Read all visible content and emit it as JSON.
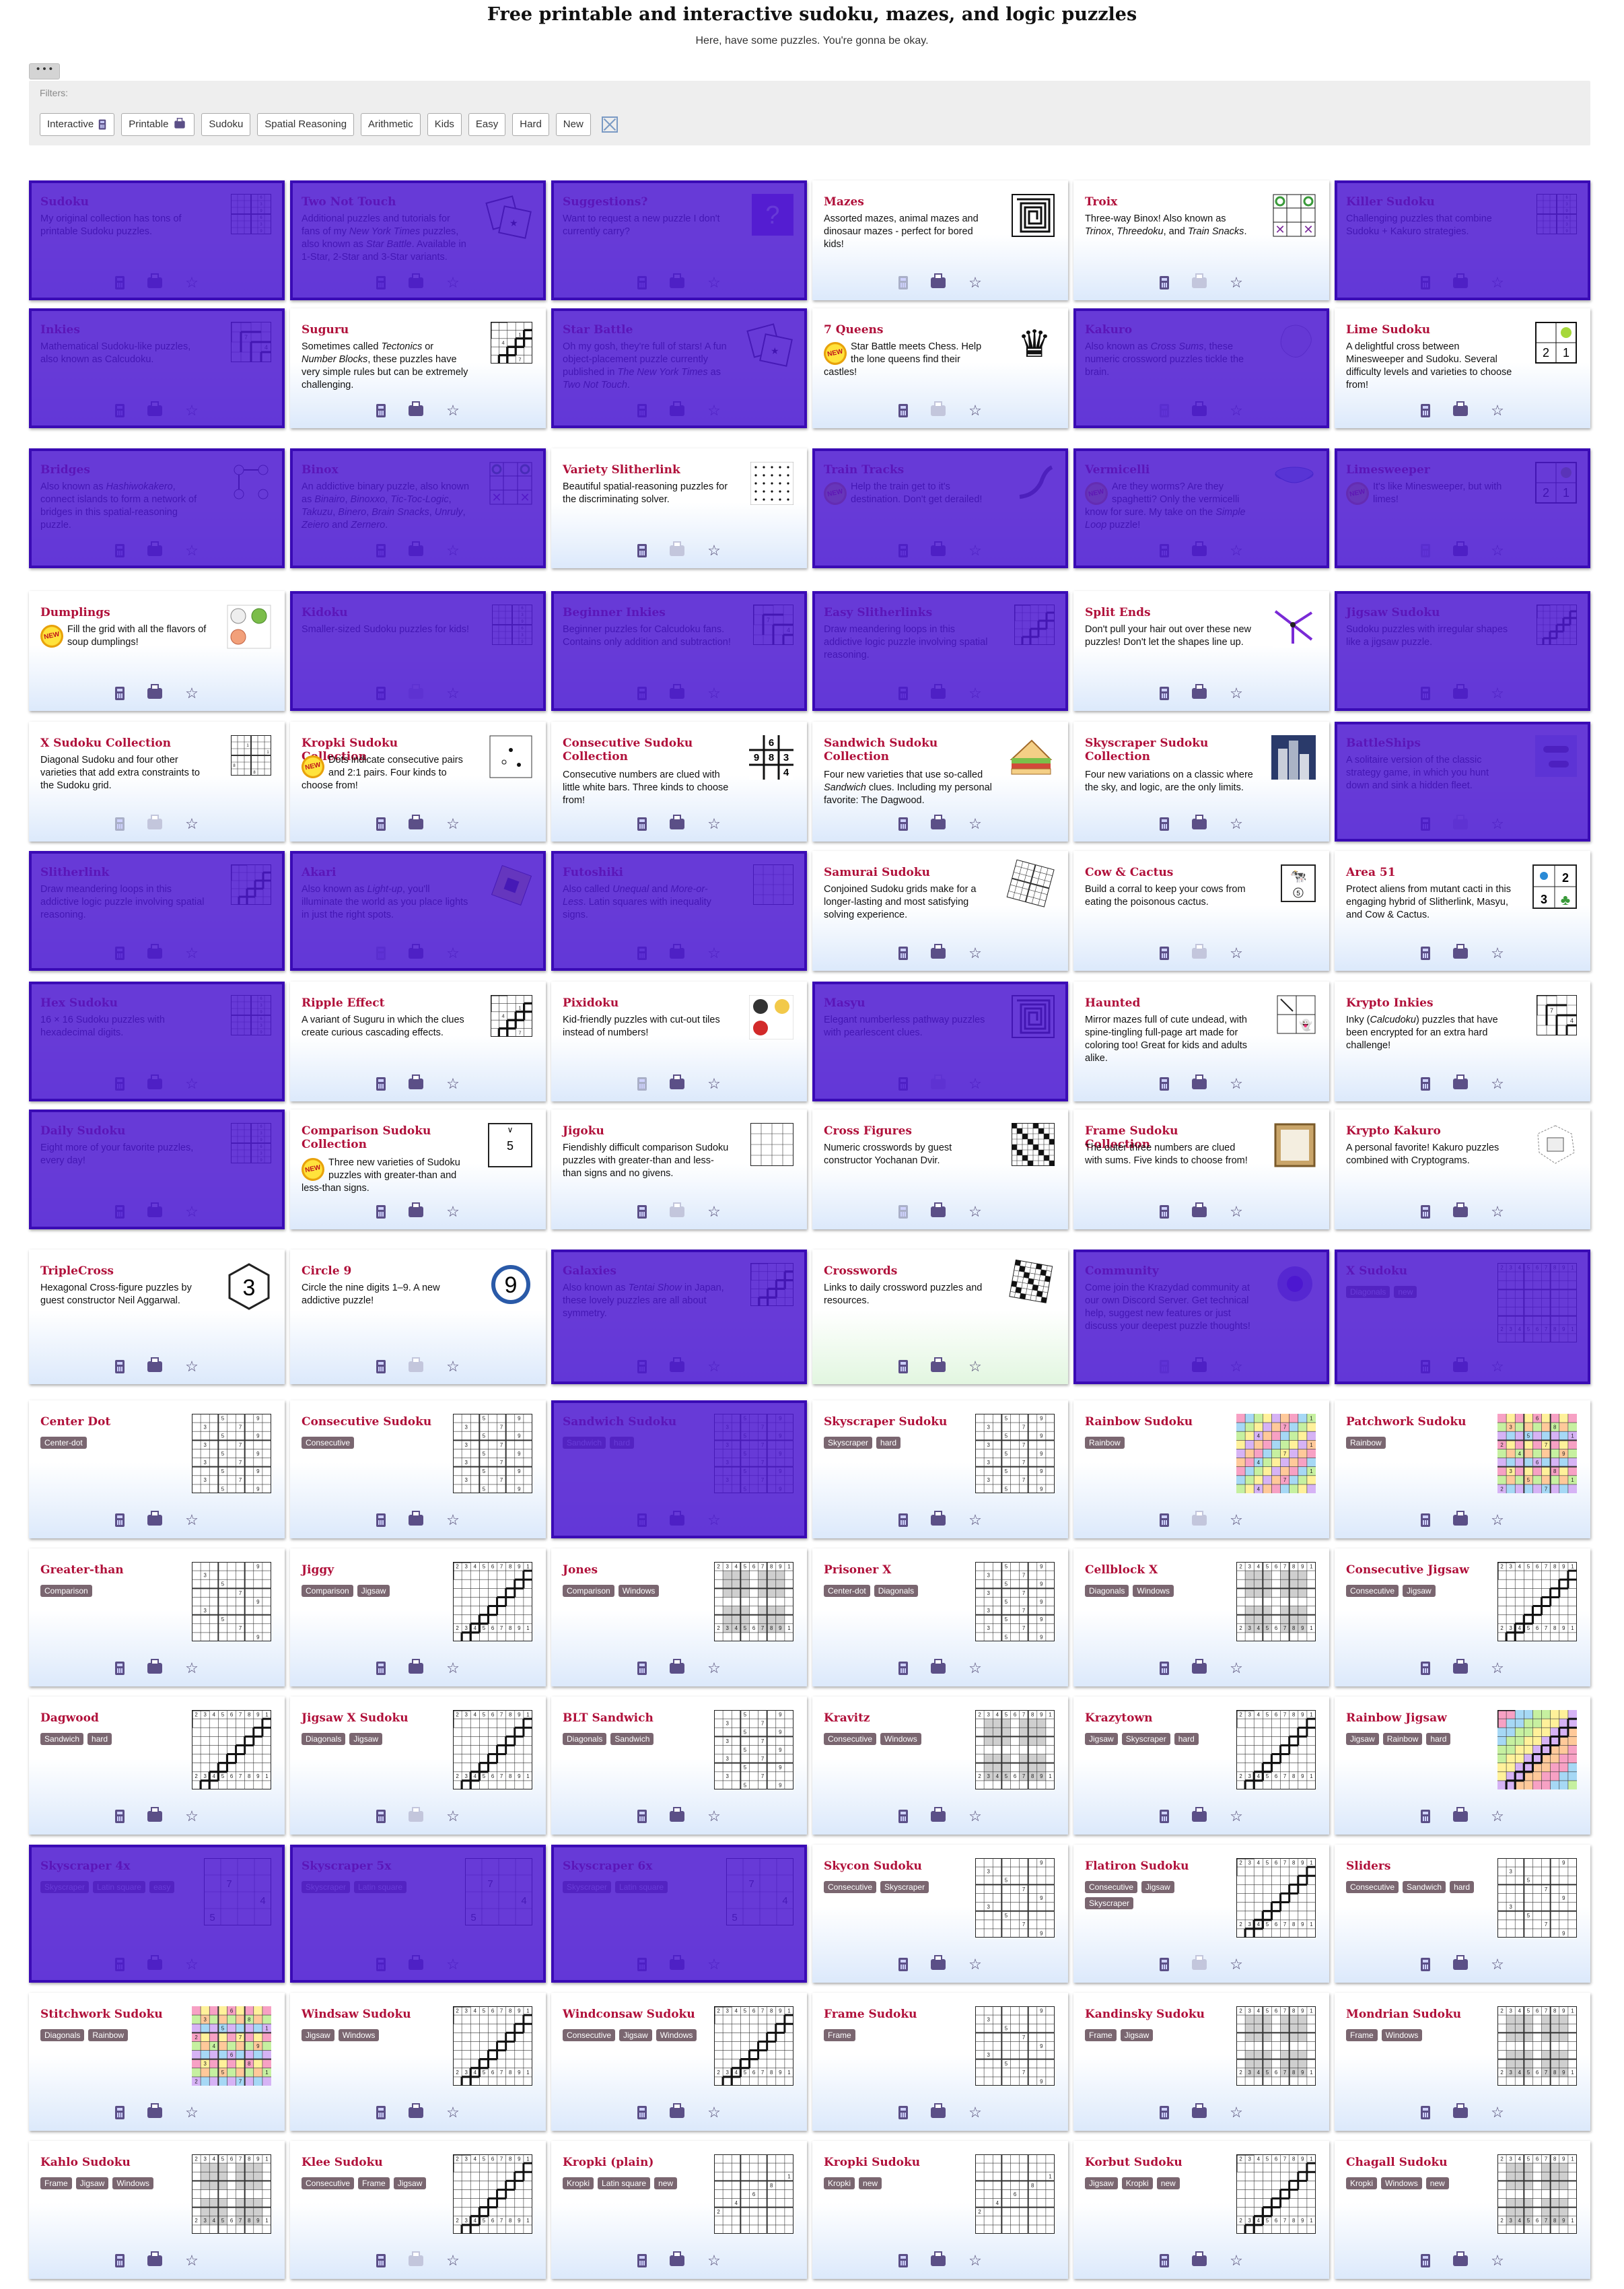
{
  "page": {
    "title": "Free printable and interactive sudoku, mazes, and logic puzzles",
    "subtitle": "Here, have some puzzles. You're gonna be okay.",
    "more_button": "• • •"
  },
  "filters": {
    "label": "Filters:",
    "items": [
      "Interactive",
      "Printable",
      "Sudoku",
      "Spatial Reasoning",
      "Arithmetic",
      "Kids",
      "Easy",
      "Hard",
      "New"
    ]
  },
  "colors": {
    "accent": "#b0103a",
    "overlay": "#4c18d0",
    "tag": "#7a6670",
    "tile_bottom": "#dce9fb"
  },
  "tiles": [
    {
      "title": "Sudoku",
      "desc": "My original collection has tons of printable Sudoku puzzles.",
      "thumb": "grid",
      "hl": true
    },
    {
      "title": "Two Not Touch",
      "desc": "Additional puzzles and tutorials for fans of my <i>New York Times</i> puzzles, also known as <i>Star Battle</i>. Available in 1-Star, 2-Star and 3-Star variants.",
      "thumb": "cards",
      "hl": true
    },
    {
      "title": "Suggestions?",
      "desc": "Want to request a new puzzle I don't currently carry?",
      "thumb": "question",
      "hl": true
    },
    {
      "title": "Mazes",
      "desc": "Assorted mazes, animal mazes and dinosaur mazes - perfect for bored kids!",
      "thumb": "maze",
      "hl": false
    },
    {
      "title": "Troix",
      "desc": "Three-way Binox! Also known as <i>Trinox</i>, <i>Threedoku</i>, and <i>Train Snacks</i>.",
      "thumb": "xo",
      "hl": false
    },
    {
      "title": "Killer Sudoku",
      "desc": "Challenging puzzles that combine Sudoku + Kakuro strategies.",
      "thumb": "grid",
      "hl": true
    },
    {
      "title": "Inkies",
      "desc": "Mathematical Sudoku-like puzzles, also known as Calcudoku.",
      "thumb": "cage",
      "hl": true
    },
    {
      "title": "Suguru",
      "desc": "Sometimes called <i>Tectonics</i> or <i>Number Blocks</i>, these puzzles have very simple rules but can be extremely challenging.",
      "thumb": "suguru",
      "hl": false
    },
    {
      "title": "Star Battle",
      "desc": "Oh my gosh, they're full of stars! A fun object-placement puzzle currently published in <i>The New York Times</i> as <i>Two Not Touch</i>.",
      "thumb": "cards",
      "hl": true
    },
    {
      "title": "7 Queens",
      "desc": "Star Battle meets Chess. Help the lone queens find their castles!",
      "thumb": "queen",
      "hl": false,
      "new": true
    },
    {
      "title": "Kakuro",
      "desc": "Also known as <i>Cross Sums</i>, these numeric crossword puzzles tickle the brain.",
      "thumb": "blob",
      "hl": true
    },
    {
      "title": "Lime Sudoku",
      "desc": "A delightful cross between Minesweeper and Sudoku. Several difficulty levels and varieties to choose from!",
      "thumb": "lime",
      "hl": false
    },
    {
      "title": "Bridges",
      "desc": "Also known as <i>Hashiwokakero</i>, connect islands to form a network of bridges in this spatial-reasoning puzzle.",
      "thumb": "bridges",
      "hl": true
    },
    {
      "title": "Binox",
      "desc": "An addictive binary puzzle, also known as <i>Binairo</i>, <i>Binoxxo</i>, <i>Tic-Toc-Logic</i>, <i>Takuzu</i>, <i>Binero</i>, <i>Brain Snacks</i>, <i>Unruly</i>, <i>Zeiero</i> and <i>Zernero</i>.",
      "thumb": "xo2",
      "hl": true
    },
    {
      "title": "Variety Slitherlink",
      "desc": "Beautiful spatial-reasoning puzzles for the discriminating solver.",
      "thumb": "dots",
      "hl": false
    },
    {
      "title": "Train Tracks",
      "desc": "Help the train get to it's destination. Don't get derailed!",
      "thumb": "tracks",
      "hl": true,
      "new": true
    },
    {
      "title": "Vermicelli",
      "desc": "Are they worms? Are they spaghetti? Only the vermicelli know for sure. My take on the <i>Simple Loop</i> puzzle!",
      "thumb": "bowl",
      "hl": true,
      "new": true
    },
    {
      "title": "Limesweeper",
      "desc": "It's like Minesweeper, but with limes!",
      "thumb": "lime2",
      "hl": true,
      "new": true
    },
    {
      "title": "Dumplings",
      "desc": "Fill the grid with all the flavors of soup dumplings!",
      "thumb": "dumpling",
      "hl": false,
      "new": true
    },
    {
      "title": "Kidoku",
      "desc": "Smaller-sized Sudoku puzzles for kids!",
      "thumb": "grid",
      "hl": true
    },
    {
      "title": "Beginner Inkies",
      "desc": "Beginner puzzles for Calcudoku fans. Contains only addition and subtraction!",
      "thumb": "cage",
      "hl": true
    },
    {
      "title": "Easy Slitherlinks",
      "desc": "Draw meandering loops in this addictive logic puzzle involving spatial reasoning.",
      "thumb": "loop",
      "hl": true
    },
    {
      "title": "Split Ends",
      "desc": "Don't pull your hair out over these new puzzles! Don't let the shapes line up.",
      "thumb": "split",
      "hl": false
    },
    {
      "title": "Jigsaw Sudoku",
      "desc": "Sudoku puzzles with irregular shapes like a jigsaw puzzle.",
      "thumb": "jigsaw",
      "hl": true
    },
    {
      "title": "X Sudoku Collection",
      "desc": "Diagonal Sudoku and four other varieties that add extra constraints to the Sudoku grid.",
      "thumb": "xgrid",
      "hl": false
    },
    {
      "title": "Kropki Sudoku Collection",
      "desc": "Dots indicate consecutive pairs and 2:1 pairs. Four kinds to choose from!",
      "thumb": "kropki",
      "hl": false,
      "new": true
    },
    {
      "title": "Consecutive Sudoku Collection",
      "desc": "Consecutive numbers are clued with little white bars. Three kinds to choose from!",
      "thumb": "consec",
      "hl": false
    },
    {
      "title": "Sandwich Sudoku Collection",
      "desc": "Four new varieties that use so-called <i>Sandwich</i> clues. Including my personal favorite: The Dagwood.",
      "thumb": "sandwich",
      "hl": false
    },
    {
      "title": "Skyscraper Sudoku Collection",
      "desc": "Four new variations on a classic where the sky, and logic, are the only limits.",
      "thumb": "sky",
      "hl": false
    },
    {
      "title": "BattleShips",
      "desc": "A solitaire version of the classic strategy game, in which you hunt down and sink a hidden fleet.",
      "thumb": "ships",
      "hl": true
    },
    {
      "title": "Slitherlink",
      "desc": "Draw meandering loops in this addictive logic puzzle involving spatial reasoning.",
      "thumb": "loop",
      "hl": true
    },
    {
      "title": "Akari",
      "desc": "Also known as <i>Light-up</i>, you'll illuminate the world as you place lights in just the right spots.",
      "thumb": "akari",
      "hl": true
    },
    {
      "title": "Futoshiki",
      "desc": "Also called <i>Unequal</i> and <i>More-or-Less</i>. Latin squares with inequality signs.",
      "thumb": "futo",
      "hl": true
    },
    {
      "title": "Samurai Sudoku",
      "desc": "Conjoined Sudoku grids make for a longer-lasting and most satisfying solving experience.",
      "thumb": "samurai",
      "hl": false
    },
    {
      "title": "Cow &amp; Cactus",
      "desc": "Build a corral to keep your cows from eating the poisonous cactus.",
      "thumb": "cow",
      "hl": false
    },
    {
      "title": "Area 51",
      "desc": "Protect aliens from mutant cacti in this engaging hybrid of Slitherlink, Masyu, and Cow &amp; Cactus.",
      "thumb": "area51",
      "hl": false
    },
    {
      "title": "Hex Sudoku",
      "desc": "16 × 16 Sudoku puzzles with hexadecimal digits.",
      "thumb": "grid",
      "hl": true
    },
    {
      "title": "Ripple Effect",
      "desc": "A variant of Suguru in which the clues create curious cascading effects.",
      "thumb": "suguru",
      "hl": false
    },
    {
      "title": "Pixidoku",
      "desc": "Kid-friendly puzzles with cut-out tiles instead of numbers!",
      "thumb": "pixi",
      "hl": false
    },
    {
      "title": "Masyu",
      "desc": "Elegant numberless pathway puzzles with pearlescent clues.",
      "thumb": "maze",
      "hl": true
    },
    {
      "title": "Haunted",
      "desc": "Mirror mazes full of cute undead, with spine-tingling full-page art made for coloring too! Great for kids and adults alike.",
      "thumb": "haunted",
      "hl": false
    },
    {
      "title": "Krypto Inkies",
      "desc": "Inky (<i>Calcudoku</i>) puzzles that have been encrypted for an extra hard challenge!",
      "thumb": "kinkies",
      "hl": false
    },
    {
      "title": "Daily Sudoku",
      "desc": "Eight more of your favorite puzzles, every day!",
      "thumb": "grid",
      "hl": true
    },
    {
      "title": "Comparison Sudoku Collection",
      "desc": "Three new varieties of Sudoku puzzles with greater-than and less-than signs.",
      "thumb": "comp",
      "hl": false,
      "new": true
    },
    {
      "title": "Jigoku",
      "desc": "Fiendishly difficult comparison Sudoku puzzles with greater-than and less-than signs and no givens.",
      "thumb": "jigoku",
      "hl": false
    },
    {
      "title": "Cross Figures",
      "desc": "Numeric crosswords by guest constructor Yochanan Dvir.",
      "thumb": "crossfig",
      "hl": false
    },
    {
      "title": "Frame Sudoku Collection",
      "desc": "The outer three numbers are clued with sums. Five kinds to choose from!",
      "thumb": "frame",
      "hl": false
    },
    {
      "title": "Krypto Kakuro",
      "desc": "A personal favorite! Kakuro puzzles combined with Cryptograms.",
      "thumb": "kkakuro",
      "hl": false
    },
    {
      "title": "TripleCross",
      "desc": "Hexagonal Cross-figure puzzles by guest constructor Neil Aggarwal.",
      "thumb": "hex3",
      "hl": false
    },
    {
      "title": "Circle 9",
      "desc": "Circle the nine digits 1–9. A new addictive puzzle!",
      "thumb": "circle9",
      "hl": false
    },
    {
      "title": "Galaxies",
      "desc": "Also known as <i>Tentai Show</i> in Japan, these lovely puzzles are all about symmetry.",
      "thumb": "galaxy",
      "hl": true
    },
    {
      "title": "Crosswords",
      "desc": "Links to daily crossword puzzles and resources.",
      "thumb": "crossword",
      "hl": false,
      "green": true
    },
    {
      "title": "Community",
      "desc": "Come join the Krazydad community at our own Discord Server. Get technical help, suggest new features or just discuss your deepest puzzle thoughts!",
      "thumb": "discord",
      "hl": true
    },
    {
      "title": "X Sudoku",
      "tags": [
        "Diagonals",
        "new"
      ],
      "thumb": "big",
      "hl": true
    }
  ],
  "variants": [
    {
      "title": "Center Dot",
      "tags": [
        "Center-dot"
      ],
      "thumb": "sud",
      "hl": false
    },
    {
      "title": "Consecutive Sudoku",
      "tags": [
        "Consecutive"
      ],
      "thumb": "sud",
      "hl": false
    },
    {
      "title": "Sandwich Sudoku",
      "tags": [
        "Sandwich",
        "hard"
      ],
      "thumb": "sud",
      "hl": true
    },
    {
      "title": "Skyscraper Sudoku",
      "tags": [
        "Skyscraper",
        "hard"
      ],
      "thumb": "sud",
      "hl": false
    },
    {
      "title": "Rainbow Sudoku",
      "tags": [
        "Rainbow"
      ],
      "thumb": "rainbow",
      "hl": false
    },
    {
      "title": "Patchwork Sudoku",
      "tags": [
        "Rainbow"
      ],
      "thumb": "patch",
      "hl": false
    },
    {
      "title": "Greater-than",
      "tags": [
        "Comparison"
      ],
      "thumb": "sudlight",
      "hl": false
    },
    {
      "title": "Jiggy",
      "tags": [
        "Comparison",
        "Jigsaw"
      ],
      "thumb": "jig",
      "hl": false
    },
    {
      "title": "Jones",
      "tags": [
        "Comparison",
        "Windows"
      ],
      "thumb": "win",
      "hl": false
    },
    {
      "title": "Prisoner X",
      "tags": [
        "Center-dot",
        "Diagonals"
      ],
      "thumb": "sud",
      "hl": false
    },
    {
      "title": "Cellblock X",
      "tags": [
        "Diagonals",
        "Windows"
      ],
      "thumb": "win",
      "hl": false
    },
    {
      "title": "Consecutive Jigsaw",
      "tags": [
        "Consecutive",
        "Jigsaw"
      ],
      "thumb": "jig",
      "hl": false
    },
    {
      "title": "Dagwood",
      "tags": [
        "Sandwich",
        "hard"
      ],
      "thumb": "jig",
      "hl": false
    },
    {
      "title": "Jigsaw X Sudoku",
      "tags": [
        "Diagonals",
        "Jigsaw"
      ],
      "thumb": "jig",
      "hl": false
    },
    {
      "title": "BLT Sandwich",
      "tags": [
        "Diagonals",
        "Sandwich"
      ],
      "thumb": "sud",
      "hl": false
    },
    {
      "title": "Kravitz",
      "tags": [
        "Consecutive",
        "Windows"
      ],
      "thumb": "win",
      "hl": false
    },
    {
      "title": "Krazytown",
      "tags": [
        "Jigsaw",
        "Skyscraper",
        "hard"
      ],
      "thumb": "jig",
      "hl": false
    },
    {
      "title": "Rainbow Jigsaw",
      "tags": [
        "Jigsaw",
        "Rainbow",
        "hard"
      ],
      "thumb": "rainbowj",
      "hl": false
    },
    {
      "title": "Skyscraper 4x",
      "tags": [
        "Skyscraper",
        "Latin square",
        "easy"
      ],
      "thumb": "small",
      "hl": true
    },
    {
      "title": "Skyscraper 5x",
      "tags": [
        "Skyscraper",
        "Latin square"
      ],
      "thumb": "small",
      "hl": true
    },
    {
      "title": "Skyscraper 6x",
      "tags": [
        "Skyscraper",
        "Latin square"
      ],
      "thumb": "small",
      "hl": true
    },
    {
      "title": "Skycon Sudoku",
      "tags": [
        "Consecutive",
        "Skyscraper"
      ],
      "thumb": "sudlight",
      "hl": false
    },
    {
      "title": "Flatiron Sudoku",
      "tags": [
        "Consecutive",
        "Jigsaw",
        "Skyscraper"
      ],
      "thumb": "jig",
      "hl": false
    },
    {
      "title": "Sliders",
      "tags": [
        "Consecutive",
        "Sandwich",
        "hard"
      ],
      "thumb": "sudlight",
      "hl": false
    },
    {
      "title": "Stitchwork Sudoku",
      "tags": [
        "Diagonals",
        "Rainbow"
      ],
      "thumb": "patch",
      "hl": false
    },
    {
      "title": "Windsaw Sudoku",
      "tags": [
        "Jigsaw",
        "Windows"
      ],
      "thumb": "jig",
      "hl": false
    },
    {
      "title": "Windconsaw Sudoku",
      "tags": [
        "Consecutive",
        "Jigsaw",
        "Windows"
      ],
      "thumb": "jig",
      "hl": false
    },
    {
      "title": "Frame Sudoku",
      "tags": [
        "Frame"
      ],
      "thumb": "sudlight",
      "hl": false
    },
    {
      "title": "Kandinsky Sudoku",
      "tags": [
        "Frame",
        "Jigsaw"
      ],
      "thumb": "win",
      "hl": false
    },
    {
      "title": "Mondrian Sudoku",
      "tags": [
        "Frame",
        "Windows"
      ],
      "thumb": "win",
      "hl": false
    },
    {
      "title": "Kahlo Sudoku",
      "tags": [
        "Frame",
        "Jigsaw",
        "Windows"
      ],
      "thumb": "win",
      "hl": false
    },
    {
      "title": "Klee Sudoku",
      "tags": [
        "Consecutive",
        "Frame",
        "Jigsaw"
      ],
      "thumb": "jig",
      "hl": false
    },
    {
      "title": "Kropki (plain)",
      "tags": [
        "Kropki",
        "Latin square",
        "new"
      ],
      "thumb": "kropkig",
      "hl": false
    },
    {
      "title": "Kropki Sudoku",
      "tags": [
        "Kropki",
        "new"
      ],
      "thumb": "kropkig",
      "hl": false
    },
    {
      "title": "Korbut Sudoku",
      "tags": [
        "Jigsaw",
        "Kropki",
        "new"
      ],
      "thumb": "jig",
      "hl": false
    },
    {
      "title": "Chagall Sudoku",
      "tags": [
        "Kropki",
        "Windows",
        "new"
      ],
      "thumb": "win",
      "hl": false
    }
  ]
}
